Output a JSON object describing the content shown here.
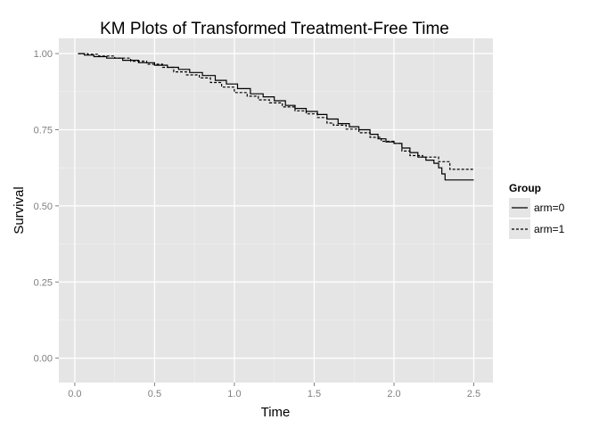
{
  "chart_data": {
    "type": "line",
    "step": true,
    "title": "KM Plots of Transformed Treatment-Free Time",
    "xlabel": "Time",
    "ylabel": "Survival",
    "xlim": [
      -0.1,
      2.62
    ],
    "ylim": [
      -0.08,
      1.05
    ],
    "xticks": [
      0.0,
      0.5,
      1.0,
      1.5,
      2.0,
      2.5
    ],
    "xtick_labels": [
      "0.0",
      "0.5",
      "1.0",
      "1.5",
      "2.0",
      "2.5"
    ],
    "yticks": [
      0.0,
      0.25,
      0.5,
      0.75,
      1.0
    ],
    "ytick_labels": [
      "0.00",
      "0.25",
      "0.50",
      "0.75",
      "1.00"
    ],
    "grid": true,
    "legend": {
      "title": "Group",
      "position": "right"
    },
    "colors": {
      "panel": "#e5e5e5",
      "grid_major": "#ffffff",
      "grid_minor": "#f2f2f2",
      "line": "#000000"
    },
    "series": [
      {
        "name": "arm=0",
        "linestyle": "solid",
        "points": [
          [
            0.02,
            1.0
          ],
          [
            0.06,
            0.995
          ],
          [
            0.12,
            0.99
          ],
          [
            0.2,
            0.985
          ],
          [
            0.3,
            0.978
          ],
          [
            0.4,
            0.97
          ],
          [
            0.5,
            0.962
          ],
          [
            0.58,
            0.955
          ],
          [
            0.65,
            0.948
          ],
          [
            0.72,
            0.938
          ],
          [
            0.8,
            0.928
          ],
          [
            0.88,
            0.912
          ],
          [
            0.95,
            0.9
          ],
          [
            1.02,
            0.885
          ],
          [
            1.1,
            0.868
          ],
          [
            1.18,
            0.858
          ],
          [
            1.25,
            0.845
          ],
          [
            1.32,
            0.83
          ],
          [
            1.38,
            0.82
          ],
          [
            1.45,
            0.81
          ],
          [
            1.52,
            0.8
          ],
          [
            1.58,
            0.785
          ],
          [
            1.65,
            0.77
          ],
          [
            1.72,
            0.76
          ],
          [
            1.78,
            0.75
          ],
          [
            1.85,
            0.735
          ],
          [
            1.9,
            0.72
          ],
          [
            1.95,
            0.71
          ],
          [
            2.0,
            0.705
          ],
          [
            2.05,
            0.69
          ],
          [
            2.1,
            0.675
          ],
          [
            2.15,
            0.66
          ],
          [
            2.2,
            0.65
          ],
          [
            2.25,
            0.64
          ],
          [
            2.28,
            0.625
          ],
          [
            2.3,
            0.605
          ],
          [
            2.32,
            0.585
          ],
          [
            2.5,
            0.585
          ]
        ]
      },
      {
        "name": "arm=1",
        "linestyle": "dashed",
        "points": [
          [
            0.02,
            1.0
          ],
          [
            0.08,
            0.998
          ],
          [
            0.15,
            0.992
          ],
          [
            0.25,
            0.985
          ],
          [
            0.35,
            0.975
          ],
          [
            0.45,
            0.965
          ],
          [
            0.55,
            0.955
          ],
          [
            0.62,
            0.94
          ],
          [
            0.7,
            0.93
          ],
          [
            0.78,
            0.92
          ],
          [
            0.85,
            0.905
          ],
          [
            0.92,
            0.89
          ],
          [
            1.0,
            0.872
          ],
          [
            1.08,
            0.86
          ],
          [
            1.15,
            0.848
          ],
          [
            1.22,
            0.838
          ],
          [
            1.3,
            0.825
          ],
          [
            1.38,
            0.812
          ],
          [
            1.45,
            0.802
          ],
          [
            1.52,
            0.79
          ],
          [
            1.58,
            0.772
          ],
          [
            1.62,
            0.765
          ],
          [
            1.7,
            0.752
          ],
          [
            1.78,
            0.74
          ],
          [
            1.85,
            0.725
          ],
          [
            1.92,
            0.712
          ],
          [
            2.0,
            0.705
          ],
          [
            2.05,
            0.68
          ],
          [
            2.1,
            0.665
          ],
          [
            2.18,
            0.66
          ],
          [
            2.28,
            0.645
          ],
          [
            2.35,
            0.62
          ],
          [
            2.5,
            0.62
          ]
        ]
      }
    ]
  }
}
